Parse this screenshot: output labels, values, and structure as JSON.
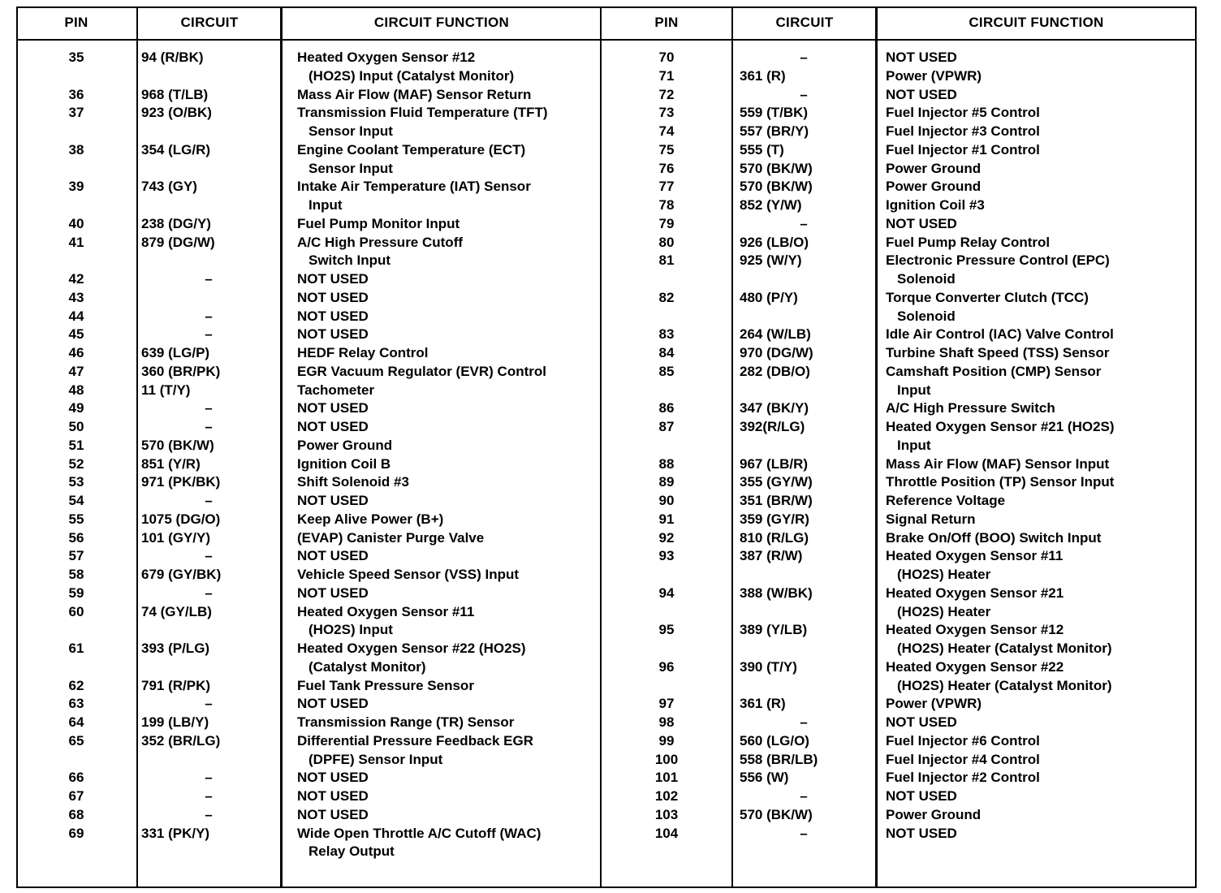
{
  "headers": {
    "pin": "PIN",
    "circuit": "CIRCUIT",
    "function": "CIRCUIT FUNCTION"
  },
  "left_rows": [
    {
      "pin": "35",
      "circuit": "94 (R/BK)",
      "function": [
        "Heated Oxygen Sensor #12",
        "(HO2S) Input (Catalyst Monitor)"
      ]
    },
    {
      "pin": "36",
      "circuit": "968 (T/LB)",
      "function": [
        "Mass Air Flow (MAF) Sensor Return"
      ]
    },
    {
      "pin": "37",
      "circuit": "923 (O/BK)",
      "function": [
        "Transmission Fluid Temperature (TFT)",
        "Sensor Input"
      ]
    },
    {
      "pin": "38",
      "circuit": "354 (LG/R)",
      "function": [
        "Engine Coolant Temperature (ECT)",
        "Sensor Input"
      ]
    },
    {
      "pin": "39",
      "circuit": "743 (GY)",
      "function": [
        "Intake Air Temperature (IAT) Sensor",
        "Input"
      ]
    },
    {
      "pin": "40",
      "circuit": "238 (DG/Y)",
      "function": [
        "Fuel Pump Monitor Input"
      ]
    },
    {
      "pin": "41",
      "circuit": "879 (DG/W)",
      "function": [
        "A/C High Pressure Cutoff",
        "Switch Input"
      ]
    },
    {
      "pin": "42",
      "circuit": "–",
      "function": [
        "NOT USED"
      ]
    },
    {
      "pin": "43",
      "circuit": "",
      "function": [
        "NOT USED"
      ]
    },
    {
      "pin": "44",
      "circuit": "–",
      "function": [
        "NOT USED"
      ]
    },
    {
      "pin": "45",
      "circuit": "–",
      "function": [
        "NOT USED"
      ]
    },
    {
      "pin": "46",
      "circuit": "639 (LG/P)",
      "function": [
        "HEDF Relay Control"
      ]
    },
    {
      "pin": "47",
      "circuit": "360 (BR/PK)",
      "function": [
        "EGR Vacuum Regulator (EVR) Control"
      ]
    },
    {
      "pin": "48",
      "circuit": "11 (T/Y)",
      "function": [
        "Tachometer"
      ]
    },
    {
      "pin": "49",
      "circuit": "–",
      "function": [
        "NOT USED"
      ]
    },
    {
      "pin": "50",
      "circuit": "–",
      "function": [
        "NOT USED"
      ]
    },
    {
      "pin": "51",
      "circuit": "570 (BK/W)",
      "function": [
        "Power Ground"
      ]
    },
    {
      "pin": "52",
      "circuit": "851 (Y/R)",
      "function": [
        "Ignition Coil B"
      ]
    },
    {
      "pin": "53",
      "circuit": "971 (PK/BK)",
      "function": [
        "Shift Solenoid #3"
      ]
    },
    {
      "pin": "54",
      "circuit": "–",
      "function": [
        "NOT USED"
      ]
    },
    {
      "pin": "55",
      "circuit": "1075 (DG/O)",
      "function": [
        "Keep Alive Power (B+)"
      ]
    },
    {
      "pin": "56",
      "circuit": "101 (GY/Y)",
      "function": [
        "(EVAP) Canister Purge Valve"
      ]
    },
    {
      "pin": "57",
      "circuit": "–",
      "function": [
        "NOT USED"
      ]
    },
    {
      "pin": "58",
      "circuit": "679 (GY/BK)",
      "function": [
        "Vehicle Speed Sensor (VSS) Input"
      ]
    },
    {
      "pin": "59",
      "circuit": "–",
      "function": [
        "NOT USED"
      ]
    },
    {
      "pin": "60",
      "circuit": "74 (GY/LB)",
      "function": [
        "Heated Oxygen Sensor #11",
        "(HO2S) Input"
      ]
    },
    {
      "pin": "61",
      "circuit": "393 (P/LG)",
      "function": [
        "Heated Oxygen Sensor #22 (HO2S)",
        "(Catalyst Monitor)"
      ]
    },
    {
      "pin": "62",
      "circuit": "791 (R/PK)",
      "function": [
        "Fuel Tank Pressure Sensor"
      ]
    },
    {
      "pin": "63",
      "circuit": "–",
      "function": [
        "NOT USED"
      ]
    },
    {
      "pin": "64",
      "circuit": "199 (LB/Y)",
      "function": [
        "Transmission Range (TR) Sensor"
      ]
    },
    {
      "pin": "65",
      "circuit": "352 (BR/LG)",
      "function": [
        "Differential Pressure Feedback EGR",
        "(DPFE) Sensor Input"
      ]
    },
    {
      "pin": "66",
      "circuit": "–",
      "function": [
        "NOT USED"
      ]
    },
    {
      "pin": "67",
      "circuit": "–",
      "function": [
        "NOT USED"
      ]
    },
    {
      "pin": "68",
      "circuit": "–",
      "function": [
        "NOT USED"
      ]
    },
    {
      "pin": "69",
      "circuit": "331 (PK/Y)",
      "function": [
        "Wide Open Throttle A/C Cutoff (WAC)",
        "Relay Output"
      ]
    }
  ],
  "right_rows": [
    {
      "pin": "70",
      "circuit": "–",
      "function": [
        "NOT USED"
      ]
    },
    {
      "pin": "71",
      "circuit": "361 (R)",
      "function": [
        "Power (VPWR)"
      ]
    },
    {
      "pin": "72",
      "circuit": "–",
      "function": [
        "NOT USED"
      ]
    },
    {
      "pin": "73",
      "circuit": "559 (T/BK)",
      "function": [
        "Fuel Injector #5 Control"
      ]
    },
    {
      "pin": "74",
      "circuit": "557 (BR/Y)",
      "function": [
        "Fuel Injector #3 Control"
      ]
    },
    {
      "pin": "75",
      "circuit": "555 (T)",
      "function": [
        "Fuel Injector #1 Control"
      ]
    },
    {
      "pin": "76",
      "circuit": "570 (BK/W)",
      "function": [
        "Power Ground"
      ]
    },
    {
      "pin": "77",
      "circuit": "570 (BK/W)",
      "function": [
        "Power Ground"
      ]
    },
    {
      "pin": "78",
      "circuit": "852 (Y/W)",
      "function": [
        "Ignition Coil #3"
      ]
    },
    {
      "pin": "79",
      "circuit": "–",
      "function": [
        "NOT USED"
      ]
    },
    {
      "pin": "80",
      "circuit": "926 (LB/O)",
      "function": [
        "Fuel Pump Relay Control"
      ]
    },
    {
      "pin": "81",
      "circuit": "925 (W/Y)",
      "function": [
        "Electronic Pressure Control (EPC)",
        "Solenoid"
      ]
    },
    {
      "pin": "82",
      "circuit": "480 (P/Y)",
      "function": [
        "Torque Converter Clutch (TCC)",
        "Solenoid"
      ]
    },
    {
      "pin": "83",
      "circuit": "264 (W/LB)",
      "function": [
        "Idle Air Control (IAC) Valve Control"
      ]
    },
    {
      "pin": "84",
      "circuit": "970 (DG/W)",
      "function": [
        "Turbine Shaft Speed (TSS) Sensor"
      ]
    },
    {
      "pin": "85",
      "circuit": "282 (DB/O)",
      "function": [
        "Camshaft Position (CMP) Sensor",
        "Input"
      ]
    },
    {
      "pin": "86",
      "circuit": "347 (BK/Y)",
      "function": [
        "A/C High Pressure Switch"
      ]
    },
    {
      "pin": "87",
      "circuit": "392(R/LG)",
      "function": [
        "Heated Oxygen Sensor #21 (HO2S)",
        "Input"
      ]
    },
    {
      "pin": "88",
      "circuit": "967 (LB/R)",
      "function": [
        "Mass Air Flow (MAF) Sensor Input"
      ]
    },
    {
      "pin": "89",
      "circuit": "355 (GY/W)",
      "function": [
        "Throttle Position (TP) Sensor Input"
      ]
    },
    {
      "pin": "90",
      "circuit": "351 (BR/W)",
      "function": [
        "Reference Voltage"
      ]
    },
    {
      "pin": "91",
      "circuit": "359 (GY/R)",
      "function": [
        "Signal Return"
      ]
    },
    {
      "pin": "92",
      "circuit": "810 (R/LG)",
      "function": [
        "Brake On/Off (BOO) Switch Input"
      ]
    },
    {
      "pin": "93",
      "circuit": "387 (R/W)",
      "function": [
        "Heated Oxygen Sensor #11",
        "(HO2S) Heater"
      ]
    },
    {
      "pin": "94",
      "circuit": "388 (W/BK)",
      "function": [
        "Heated Oxygen Sensor #21",
        "(HO2S) Heater"
      ]
    },
    {
      "pin": "95",
      "circuit": "389 (Y/LB)",
      "function": [
        "Heated Oxygen Sensor #12",
        "(HO2S) Heater (Catalyst Monitor)"
      ]
    },
    {
      "pin": "96",
      "circuit": "390 (T/Y)",
      "function": [
        "Heated Oxygen Sensor #22",
        "(HO2S) Heater (Catalyst Monitor)"
      ]
    },
    {
      "pin": "97",
      "circuit": "361 (R)",
      "function": [
        "Power (VPWR)"
      ]
    },
    {
      "pin": "98",
      "circuit": "–",
      "function": [
        "NOT USED"
      ]
    },
    {
      "pin": "99",
      "circuit": "560 (LG/O)",
      "function": [
        "Fuel Injector #6 Control"
      ]
    },
    {
      "pin": "100",
      "circuit": "558 (BR/LB)",
      "function": [
        "Fuel Injector #4 Control"
      ]
    },
    {
      "pin": "101",
      "circuit": "556 (W)",
      "function": [
        "Fuel Injector #2 Control"
      ]
    },
    {
      "pin": "102",
      "circuit": "–",
      "function": [
        "NOT USED"
      ]
    },
    {
      "pin": "103",
      "circuit": "570 (BK/W)",
      "function": [
        "Power Ground"
      ]
    },
    {
      "pin": "104",
      "circuit": "–",
      "function": [
        "NOT USED"
      ]
    }
  ]
}
